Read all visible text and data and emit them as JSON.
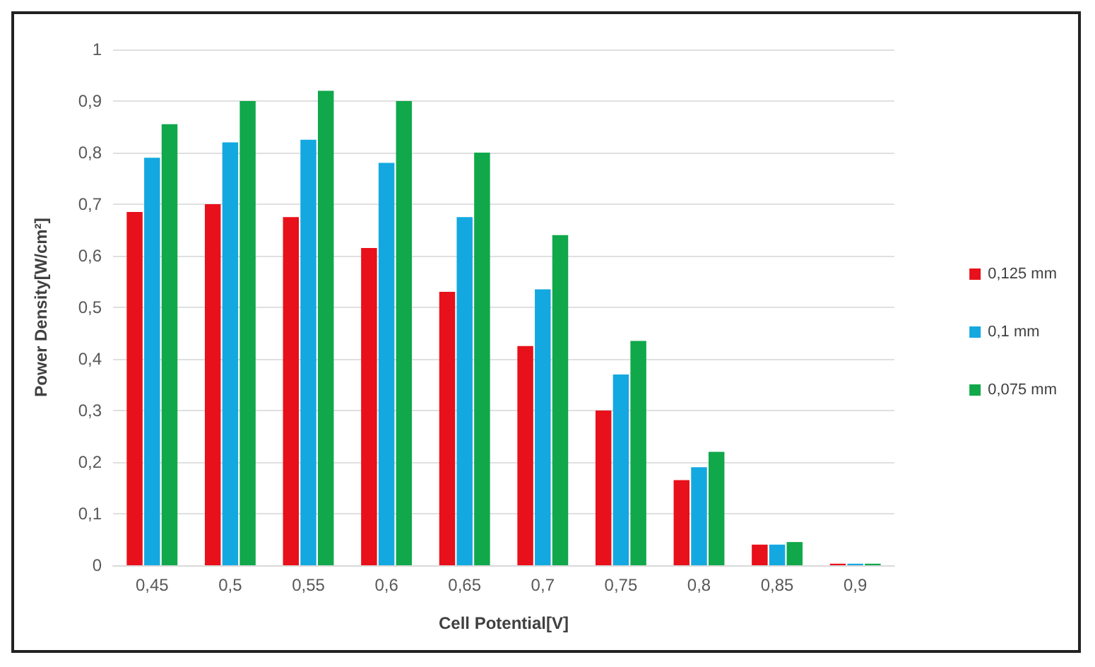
{
  "chart_data": {
    "type": "bar",
    "xlabel": "Cell Potential[V]",
    "ylabel": "Power Density[W/cm²]",
    "categories": [
      "0,45",
      "0,5",
      "0,55",
      "0,6",
      "0,65",
      "0,7",
      "0,75",
      "0,8",
      "0,85",
      "0,9"
    ],
    "series": [
      {
        "name": "0,125 mm",
        "color": "#e8101a",
        "values": [
          0.685,
          0.7,
          0.675,
          0.615,
          0.53,
          0.425,
          0.3,
          0.165,
          0.04,
          0.003
        ]
      },
      {
        "name": "0,1 mm",
        "color": "#14a8e0",
        "values": [
          0.79,
          0.82,
          0.825,
          0.78,
          0.675,
          0.535,
          0.37,
          0.19,
          0.04,
          0.003
        ]
      },
      {
        "name": "0,075 mm",
        "color": "#10a84a",
        "values": [
          0.855,
          0.9,
          0.92,
          0.9,
          0.8,
          0.64,
          0.435,
          0.22,
          0.045,
          0.003
        ]
      }
    ],
    "ylim": [
      0,
      1
    ],
    "yticks": [
      {
        "value": 0,
        "label": "0"
      },
      {
        "value": 0.1,
        "label": "0,1"
      },
      {
        "value": 0.2,
        "label": "0,2"
      },
      {
        "value": 0.3,
        "label": "0,3"
      },
      {
        "value": 0.4,
        "label": "0,4"
      },
      {
        "value": 0.5,
        "label": "0,5"
      },
      {
        "value": 0.6,
        "label": "0,6"
      },
      {
        "value": 0.7,
        "label": "0,7"
      },
      {
        "value": 0.8,
        "label": "0,8"
      },
      {
        "value": 0.9,
        "label": "0,9"
      },
      {
        "value": 1,
        "label": "1"
      }
    ],
    "grid": "y",
    "legend": "right"
  }
}
